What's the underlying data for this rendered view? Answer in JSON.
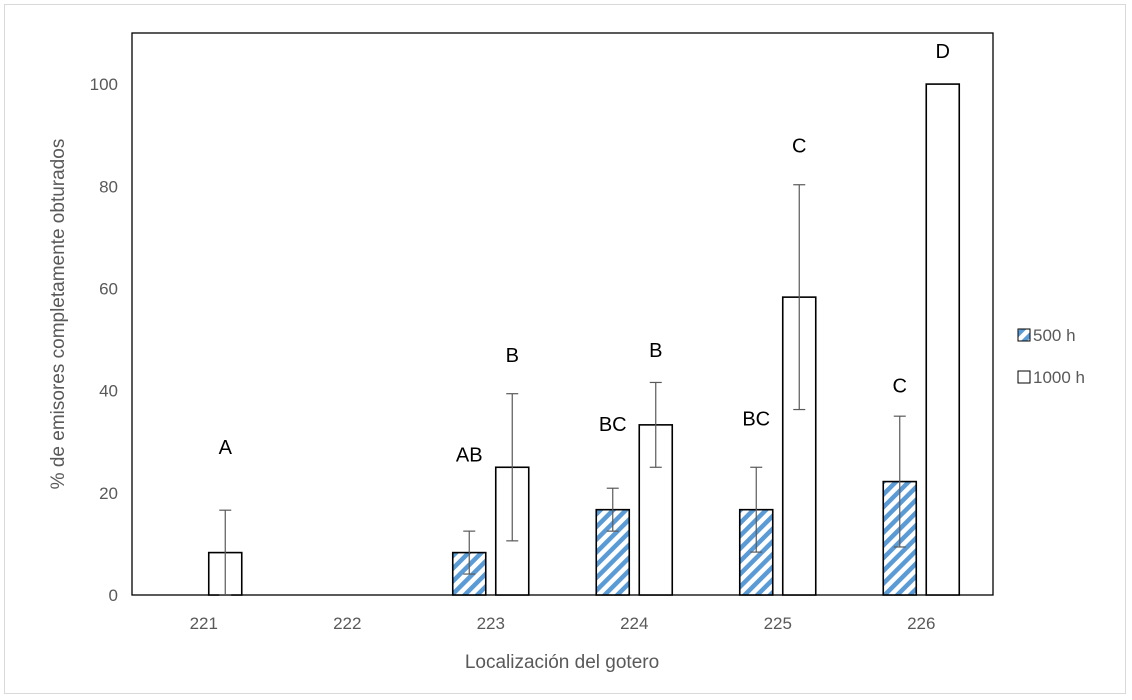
{
  "chart_data": {
    "type": "bar",
    "xlabel": "Localización del gotero",
    "ylabel": "% de emisores completamente obturados",
    "categories": [
      "221",
      "222",
      "223",
      "224",
      "225",
      "226"
    ],
    "ylim": [
      0,
      110
    ],
    "yticks": [
      0,
      20,
      40,
      60,
      80,
      100
    ],
    "grid": false,
    "legend_position": "right",
    "series": [
      {
        "name": "500 h",
        "pattern": "diagonal-stripes",
        "color": "#5b9bd5",
        "values": [
          0,
          0,
          8.3,
          16.7,
          16.7,
          22.2
        ],
        "error": [
          0,
          0,
          4.2,
          4.2,
          8.3,
          12.8
        ]
      },
      {
        "name": "1000 h",
        "pattern": "solid",
        "color": "#ffffff",
        "values": [
          8.3,
          0,
          25,
          33.3,
          58.3,
          100
        ],
        "error": [
          8.3,
          0,
          14.4,
          8.3,
          22,
          0
        ]
      }
    ],
    "annotations": [
      {
        "category": "221",
        "text": "A",
        "y": 29
      },
      {
        "category": "223",
        "text": "AB",
        "y": 27.5
      },
      {
        "category": "223",
        "text": "B",
        "y": 47
      },
      {
        "category": "224",
        "text": "BC",
        "y": 33.5
      },
      {
        "category": "224",
        "text": "B",
        "y": 48
      },
      {
        "category": "225",
        "text": "BC",
        "y": 34.5
      },
      {
        "category": "225",
        "text": "C",
        "y": 88
      },
      {
        "category": "226",
        "text": "C",
        "y": 41
      },
      {
        "category": "226",
        "text": "D",
        "y": 106.5
      }
    ]
  }
}
